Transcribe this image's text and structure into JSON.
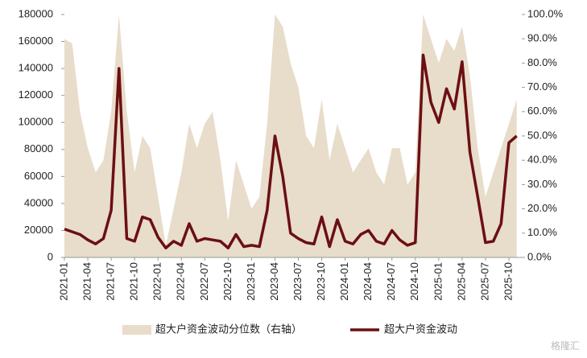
{
  "chart_data": {
    "type": "area-line",
    "categories": [
      "2021-01",
      null,
      null,
      "2021-04",
      null,
      null,
      "2021-07",
      null,
      null,
      "2021-10",
      null,
      null,
      "2022-01",
      null,
      null,
      "2022-04",
      null,
      null,
      "2022-07",
      null,
      null,
      "2022-10",
      null,
      null,
      "2023-01",
      null,
      null,
      "2023-04",
      null,
      null,
      "2023-07",
      null,
      null,
      "2023-10",
      null,
      null,
      "2024-01",
      null,
      null,
      "2024-04",
      null,
      null,
      "2024-07",
      null,
      null,
      "2024-10",
      null,
      null,
      "2025-01",
      null,
      null,
      "2025-04",
      null,
      null,
      "2025-07",
      null,
      null,
      "2025-10",
      null
    ],
    "series": [
      {
        "name": "超大户资金波动分位数（右轴）",
        "color": "#e8dccb",
        "axis": "y2",
        "values": [
          90,
          88,
          60,
          45,
          35,
          40,
          60,
          100,
          60,
          35,
          50,
          45,
          25,
          5,
          20,
          35,
          55,
          45,
          55,
          60,
          40,
          15,
          40,
          30,
          20,
          25,
          55,
          100,
          95,
          80,
          70,
          50,
          45,
          65,
          40,
          55,
          45,
          35,
          40,
          45,
          35,
          30,
          45,
          45,
          30,
          35,
          100,
          90,
          80,
          90,
          85,
          95,
          75,
          45,
          25,
          35,
          45,
          55,
          65
        ]
      },
      {
        "name": "超大户资金波动",
        "color": "#6b0f12",
        "values": [
          21000,
          19000,
          17000,
          13000,
          10000,
          14000,
          35000,
          140000,
          14000,
          12000,
          30000,
          28000,
          15000,
          7000,
          12000,
          9000,
          25000,
          12000,
          14000,
          13000,
          12000,
          7000,
          17000,
          8000,
          9000,
          8000,
          35000,
          90000,
          60000,
          18000,
          14000,
          11000,
          10000,
          30000,
          8000,
          28000,
          12000,
          10000,
          17000,
          20000,
          12000,
          10000,
          20000,
          13000,
          9000,
          11000,
          150000,
          115000,
          100000,
          125000,
          110000,
          145000,
          78000,
          45000,
          11000,
          12000,
          25000,
          85000,
          90000
        ]
      }
    ],
    "ylim": [
      0,
      180000
    ],
    "yticks": [
      0,
      20000,
      40000,
      60000,
      80000,
      100000,
      120000,
      140000,
      160000,
      180000
    ],
    "y2lim": [
      0,
      100
    ],
    "y2ticks": [
      {
        "value": 0,
        "label": "0.0%"
      },
      {
        "value": 10,
        "label": "10.0%"
      },
      {
        "value": 20,
        "label": "20.0%"
      },
      {
        "value": 30,
        "label": "30.0%"
      },
      {
        "value": 40,
        "label": "40.0%"
      },
      {
        "value": 50,
        "label": "50.0%"
      },
      {
        "value": 60,
        "label": "60.0%"
      },
      {
        "value": 70,
        "label": "70.0%"
      },
      {
        "value": 80,
        "label": "80.0%"
      },
      {
        "value": 90,
        "label": "90.0%"
      },
      {
        "value": 100,
        "label": "100.0%"
      }
    ],
    "legend": "bottom",
    "watermark": "格隆汇"
  }
}
